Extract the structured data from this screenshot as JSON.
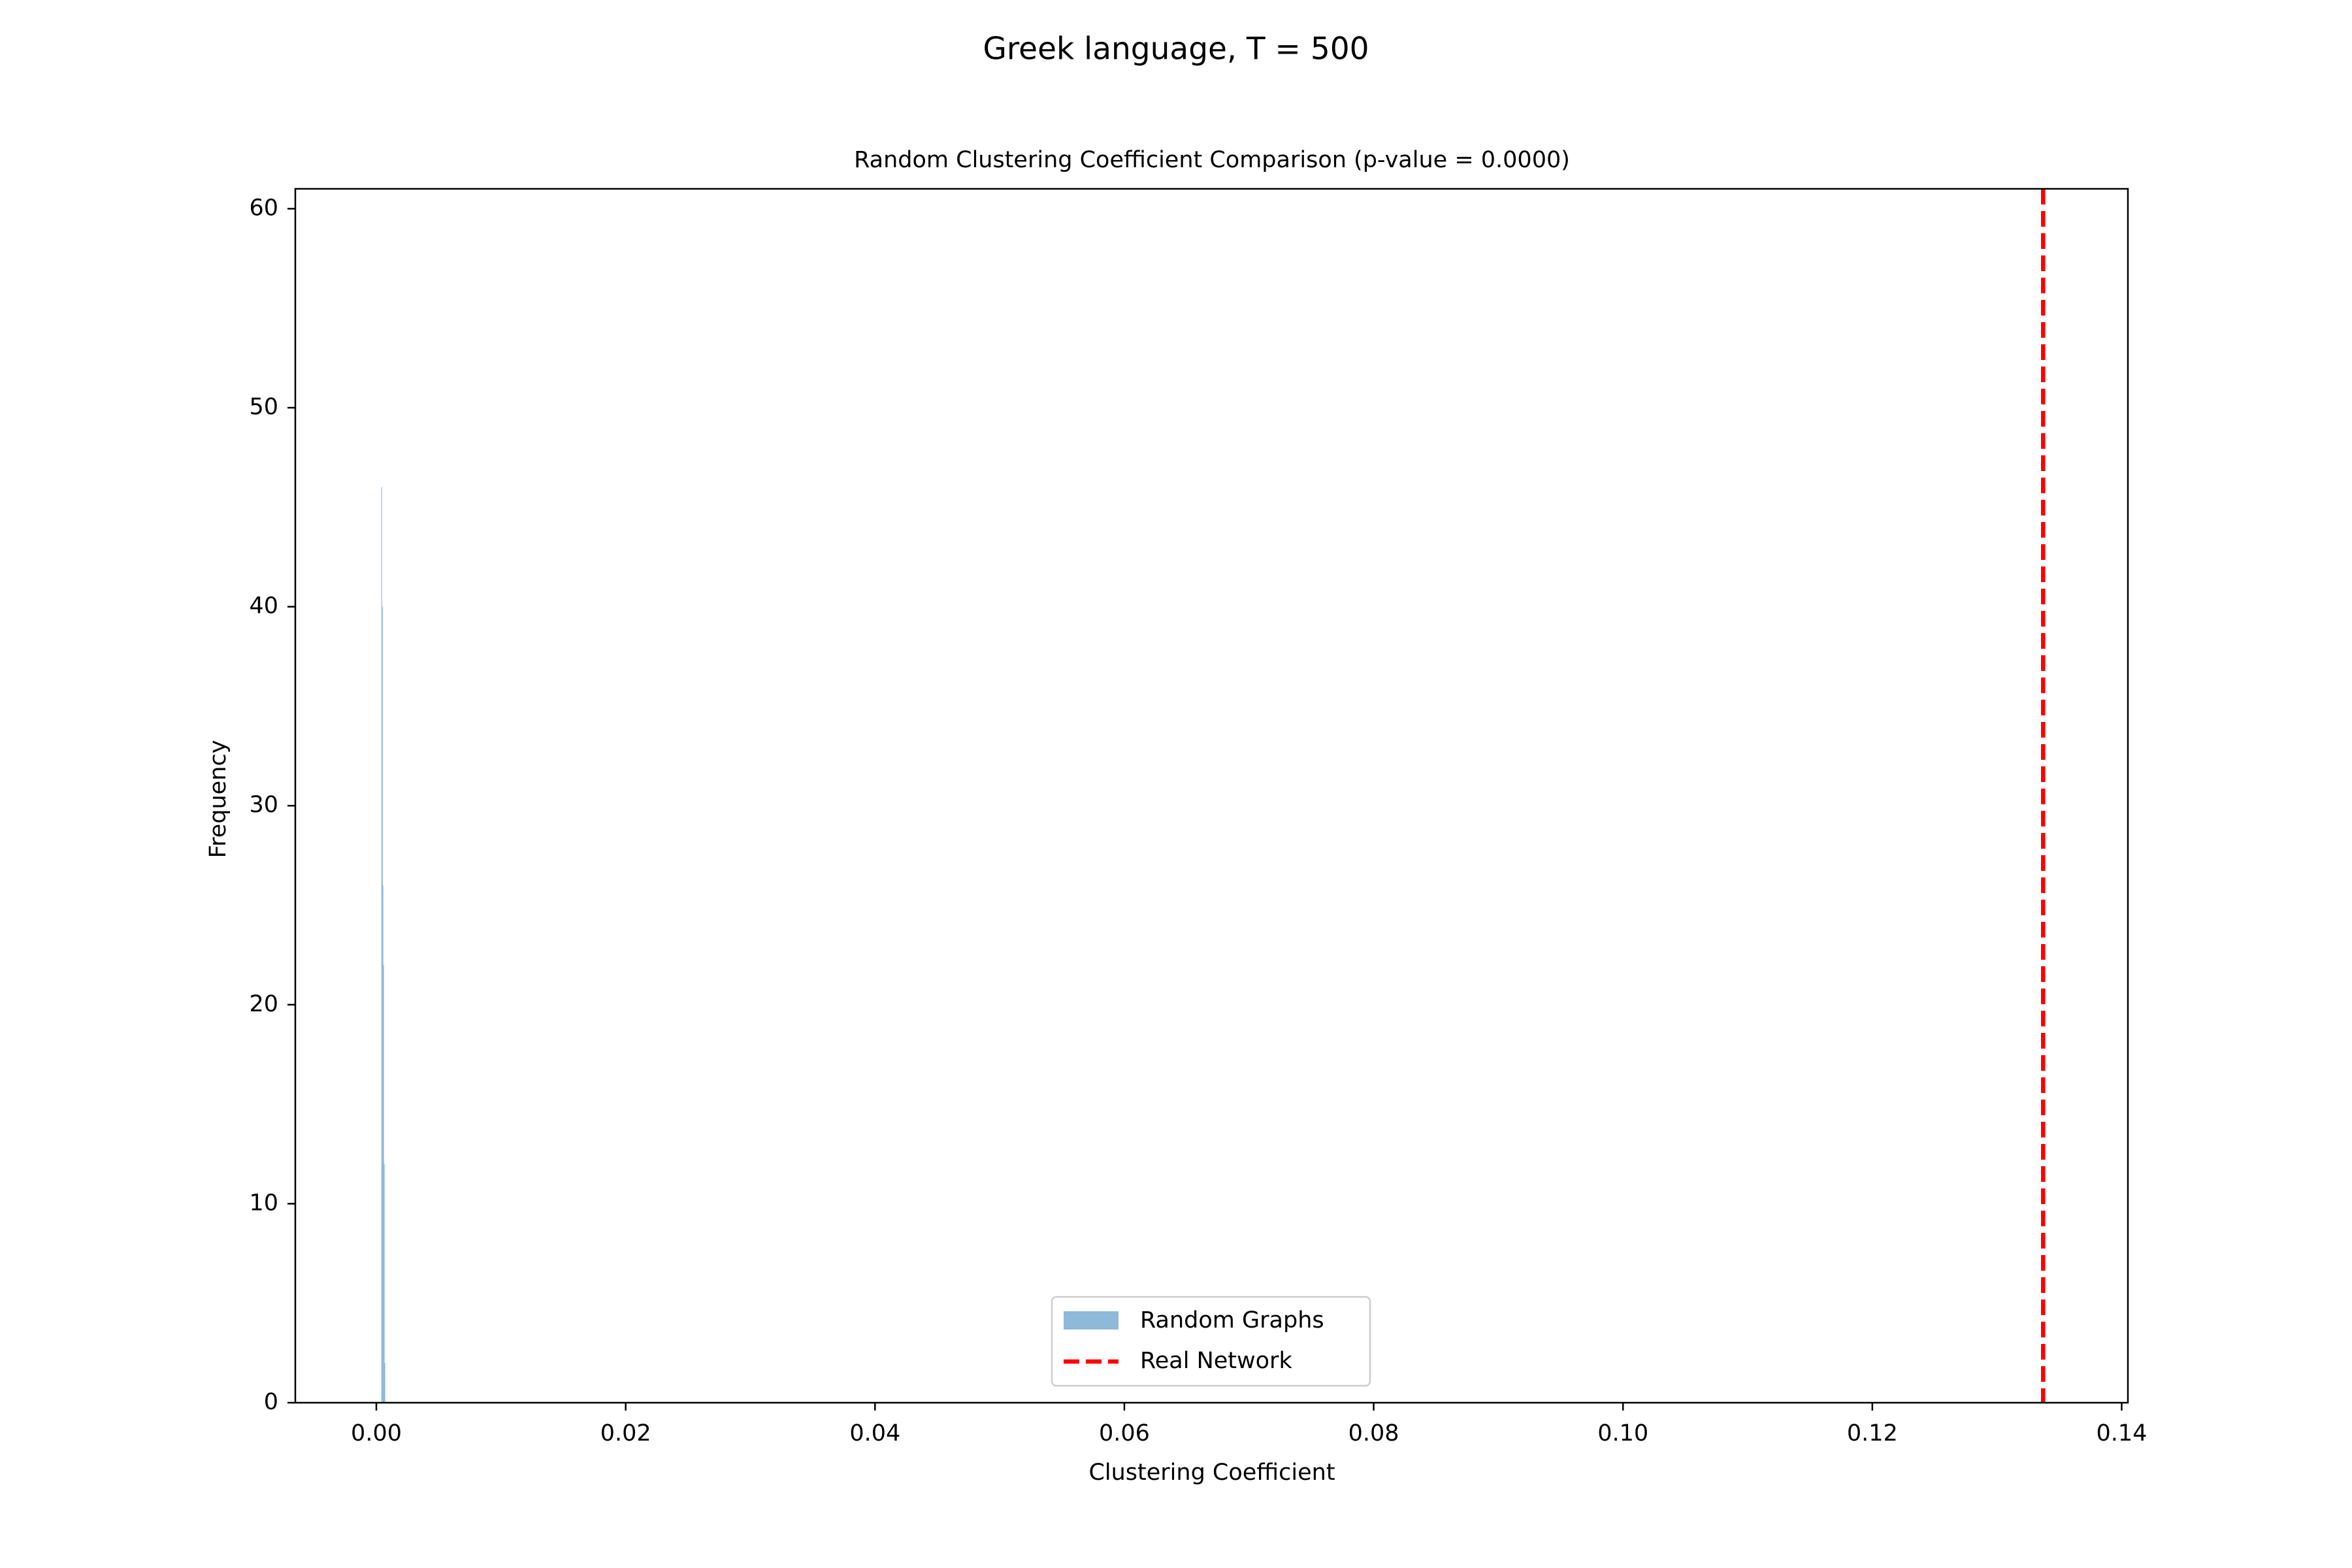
{
  "figure": {
    "suptitle": "Greek language, T = 500"
  },
  "chart_data": {
    "type": "histogram",
    "title": "Random Clustering Coefficient Comparison (p-value = 0.0000)",
    "xlabel": "Clustering Coefficient",
    "ylabel": "Frequency",
    "xlim": [
      -0.0065,
      0.1405
    ],
    "ylim": [
      0,
      61
    ],
    "x_ticks": [
      0.0,
      0.02,
      0.04,
      0.06,
      0.08,
      0.1,
      0.12,
      0.14
    ],
    "x_tick_labels": [
      "0.00",
      "0.02",
      "0.04",
      "0.06",
      "0.08",
      "0.10",
      "0.12",
      "0.14"
    ],
    "y_ticks": [
      0,
      10,
      20,
      30,
      40,
      50,
      60
    ],
    "y_tick_labels": [
      "0",
      "10",
      "20",
      "30",
      "40",
      "50",
      "60"
    ],
    "series": [
      {
        "name": "Random Graphs",
        "kind": "histogram",
        "color": "#8fb9d8",
        "bins": [
          {
            "x0": 0.0004,
            "x1": 0.00045,
            "count": 46
          },
          {
            "x0": 0.00045,
            "x1": 0.0005,
            "count": 40
          },
          {
            "x0": 0.0005,
            "x1": 0.00055,
            "count": 26
          },
          {
            "x0": 0.00055,
            "x1": 0.0006,
            "count": 22
          },
          {
            "x0": 0.0006,
            "x1": 0.00065,
            "count": 12
          },
          {
            "x0": 0.00065,
            "x1": 0.0007,
            "count": 2
          }
        ]
      },
      {
        "name": "Real Network",
        "kind": "vline",
        "color": "#ff0000",
        "style": "dashed",
        "x": 0.1337
      }
    ],
    "legend": {
      "placement": "lower-center",
      "entries": [
        "Random Graphs",
        "Real Network"
      ]
    },
    "grid": false
  }
}
